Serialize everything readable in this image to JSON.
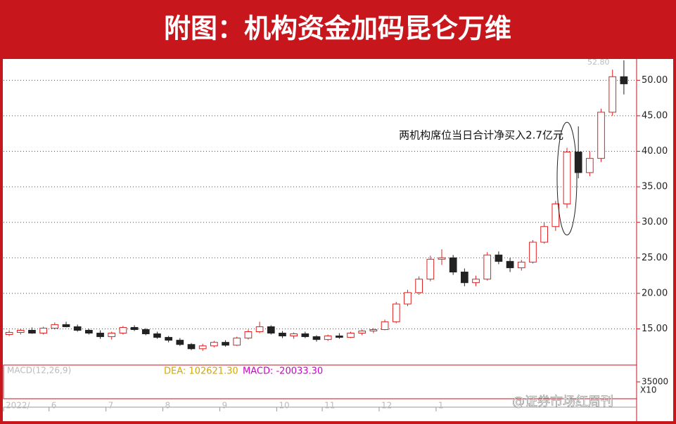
{
  "header": {
    "title": "附图：机构资金加码昆仑万维"
  },
  "chart_data": {
    "type": "candlestick",
    "open": [
      14.2,
      14.5,
      14.8,
      14.4,
      15.1,
      15.6,
      15.3,
      14.8,
      14.4,
      13.9,
      14.4,
      15.2,
      14.9,
      14.3,
      13.8,
      13.4,
      12.8,
      12.2,
      12.6,
      13.1,
      12.7,
      13.7,
      14.6,
      15.3,
      14.4,
      14.0,
      14.3,
      13.9,
      13.5,
      14.0,
      13.8,
      14.4,
      14.7,
      14.9,
      16.0,
      18.5,
      20.1,
      22.0,
      24.8,
      25.0,
      23.0,
      21.5,
      22.0,
      25.4,
      24.5,
      23.6,
      24.4,
      27.2,
      29.4,
      32.6,
      39.9,
      37.0,
      39.0,
      45.5,
      50.5
    ],
    "high": [
      14.8,
      15.0,
      15.2,
      15.3,
      15.9,
      16.0,
      15.6,
      15.0,
      14.8,
      14.6,
      15.4,
      15.5,
      15.1,
      14.6,
      14.0,
      13.7,
      13.0,
      12.9,
      13.3,
      13.4,
      13.9,
      14.9,
      16.0,
      15.5,
      14.7,
      14.5,
      14.6,
      14.1,
      14.2,
      14.4,
      14.6,
      14.9,
      15.1,
      16.3,
      18.8,
      20.5,
      22.4,
      25.3,
      26.2,
      25.4,
      23.5,
      22.5,
      25.8,
      25.9,
      25.0,
      24.7,
      27.5,
      30.0,
      33.0,
      40.5,
      43.5,
      40.0,
      46.0,
      51.5,
      52.8
    ],
    "low": [
      14.0,
      14.2,
      14.3,
      14.2,
      14.9,
      15.2,
      14.6,
      14.2,
      13.6,
      13.5,
      14.2,
      14.7,
      14.1,
      13.6,
      13.1,
      12.6,
      12.0,
      11.9,
      12.4,
      12.5,
      12.6,
      13.5,
      14.4,
      14.2,
      13.7,
      13.6,
      13.7,
      13.2,
      13.3,
      13.6,
      13.7,
      14.1,
      14.4,
      14.8,
      15.8,
      18.2,
      19.8,
      21.7,
      24.0,
      22.6,
      21.0,
      21.0,
      21.8,
      24.1,
      23.0,
      23.2,
      24.2,
      27.0,
      28.8,
      32.0,
      36.2,
      36.5,
      38.5,
      45.0,
      48.0
    ],
    "close": [
      14.5,
      14.8,
      14.4,
      15.1,
      15.6,
      15.3,
      14.8,
      14.4,
      13.9,
      14.4,
      15.2,
      14.9,
      14.3,
      13.8,
      13.4,
      12.8,
      12.2,
      12.6,
      13.1,
      12.7,
      13.7,
      14.6,
      15.3,
      14.4,
      14.0,
      14.3,
      13.9,
      13.5,
      14.0,
      13.8,
      14.4,
      14.7,
      14.9,
      16.0,
      18.5,
      20.1,
      22.0,
      24.8,
      25.0,
      23.0,
      21.5,
      22.0,
      25.4,
      24.5,
      23.6,
      24.4,
      27.2,
      29.4,
      32.6,
      39.9,
      37.0,
      39.0,
      45.5,
      50.5,
      49.5
    ],
    "up_color": "#e02020",
    "down_color": "#222222",
    "ylim": [
      10.4,
      52.9
    ],
    "yticks": [
      {
        "value": 15,
        "label": "15.00"
      },
      {
        "value": 20,
        "label": "20.00"
      },
      {
        "value": 25,
        "label": "25.00"
      },
      {
        "value": 30,
        "label": "30.00"
      },
      {
        "value": 35,
        "label": "35.00"
      },
      {
        "value": 40,
        "label": "40.00"
      },
      {
        "value": 45,
        "label": "45.00"
      },
      {
        "value": 50,
        "label": "50.00"
      }
    ],
    "max_label": {
      "value": 52.8,
      "label": "52.80"
    },
    "xticks": [
      {
        "value": 0,
        "label": "2022/"
      },
      {
        "value": 4,
        "label": "6"
      },
      {
        "value": 9,
        "label": "7"
      },
      {
        "value": 14,
        "label": "8"
      },
      {
        "value": 19,
        "label": "9"
      },
      {
        "value": 24,
        "label": "10"
      },
      {
        "value": 28,
        "label": "11"
      },
      {
        "value": 33,
        "label": "12"
      },
      {
        "value": 38,
        "label": "1"
      }
    ],
    "annotation": "两机构席位当日合计净买入2.7亿元",
    "annotation_index": 49,
    "macd": {
      "title": "MACD(12,26,9)",
      "dea_label": "DEA: 102621.30",
      "macd_label": "MACD: -20033.30",
      "y2ticks": [
        {
          "value": 35000,
          "label": "35000"
        }
      ],
      "scale_label": "X10"
    },
    "watermark": "@证券市场红周刊"
  }
}
